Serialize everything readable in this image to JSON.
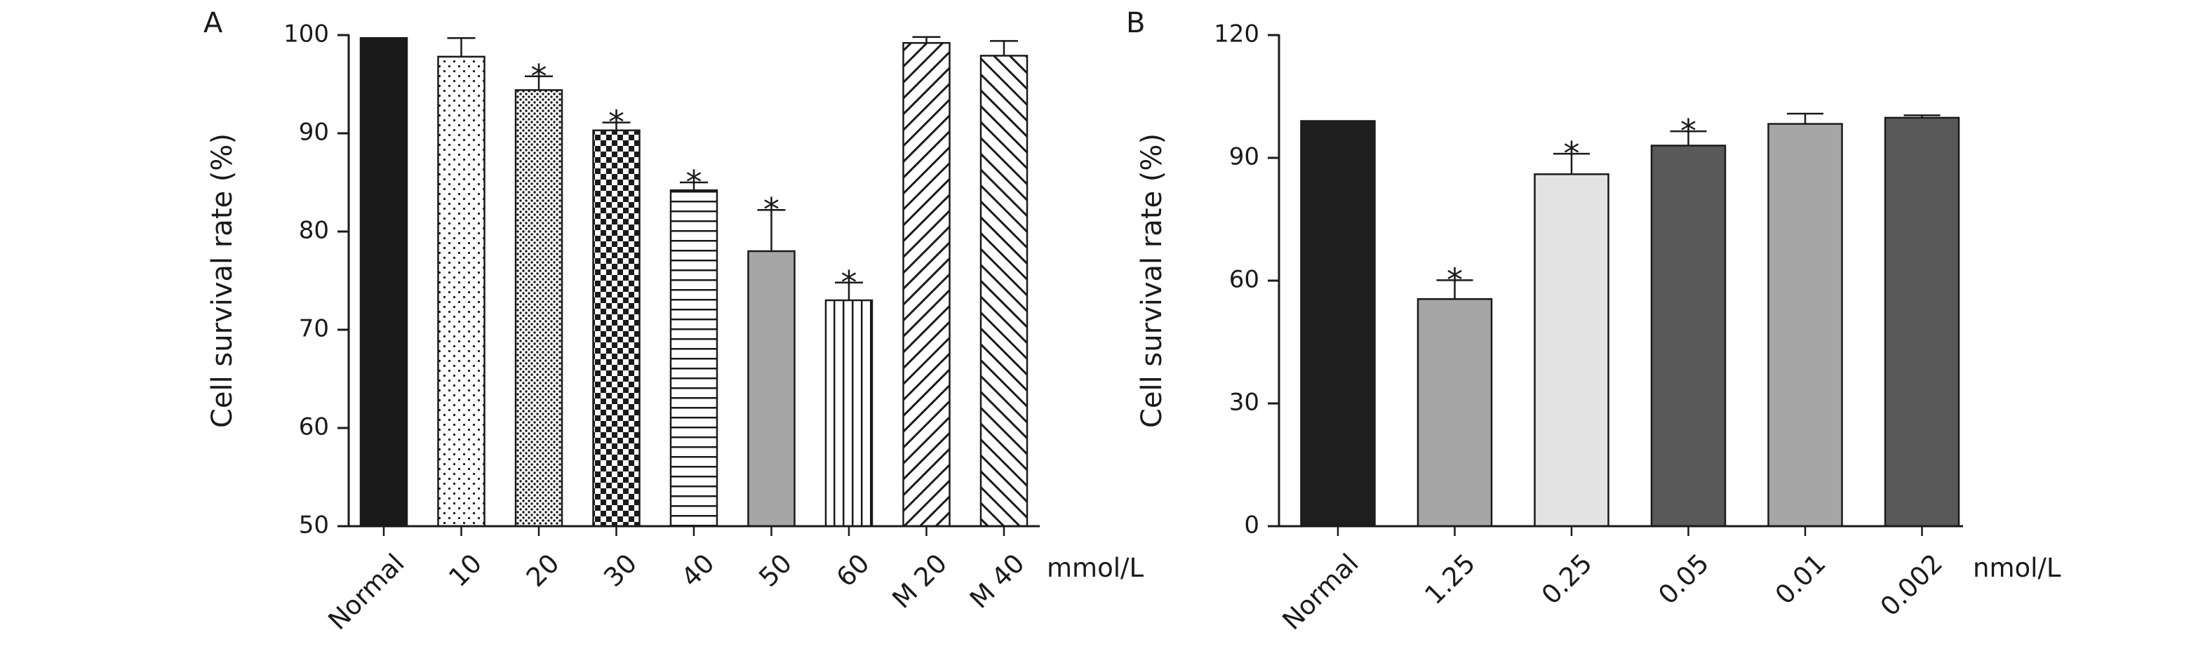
{
  "chart_data": [
    {
      "panel": "A",
      "type": "bar",
      "ylabel": "Cell survival rate (%)",
      "unit": "mmol/L",
      "ylim": [
        50,
        100
      ],
      "yticks": [
        50,
        60,
        70,
        80,
        90,
        100
      ],
      "categories": [
        "Normal",
        "10",
        "20",
        "30",
        "40",
        "50",
        "60",
        "M 20",
        "M 40"
      ],
      "values": [
        99.7,
        97.8,
        94.4,
        90.3,
        84.2,
        78.0,
        73.0,
        99.2,
        97.9
      ],
      "errors": [
        0,
        1.9,
        1.4,
        0.8,
        0.8,
        4.2,
        1.8,
        0.6,
        1.5
      ],
      "significant": [
        false,
        false,
        true,
        true,
        true,
        true,
        true,
        false,
        false
      ],
      "significance_marker": "*",
      "fills": [
        "solid-black",
        "dots-sparse",
        "dots-dense",
        "checker",
        "horizontal-lines",
        "solid-gray",
        "vertical-lines",
        "diagonal-forward",
        "diagonal-back"
      ],
      "colors": {
        "black": "#1a1a1a",
        "gray": "#a6a6a6",
        "white": "#ffffff"
      },
      "grid": false,
      "legend": "none"
    },
    {
      "panel": "B",
      "type": "bar",
      "ylabel": "Cell survival rate (%)",
      "unit": "nmol/L",
      "ylim": [
        0,
        120
      ],
      "yticks": [
        0,
        30,
        60,
        90,
        120
      ],
      "categories": [
        "Normal",
        "1.25",
        "0.25",
        "0.05",
        "0.01",
        "0.002"
      ],
      "values": [
        99.0,
        55.5,
        86.0,
        93.0,
        98.3,
        99.8
      ],
      "errors": [
        0,
        4.6,
        5.0,
        3.5,
        2.5,
        0.6
      ],
      "significant": [
        false,
        true,
        true,
        true,
        false,
        false
      ],
      "significance_marker": "*",
      "colors": [
        "#1f1f1f",
        "#a6a6a6",
        "#e3e3e3",
        "#595959",
        "#a6a6a6",
        "#595959"
      ],
      "grid": false,
      "legend": "none"
    }
  ]
}
